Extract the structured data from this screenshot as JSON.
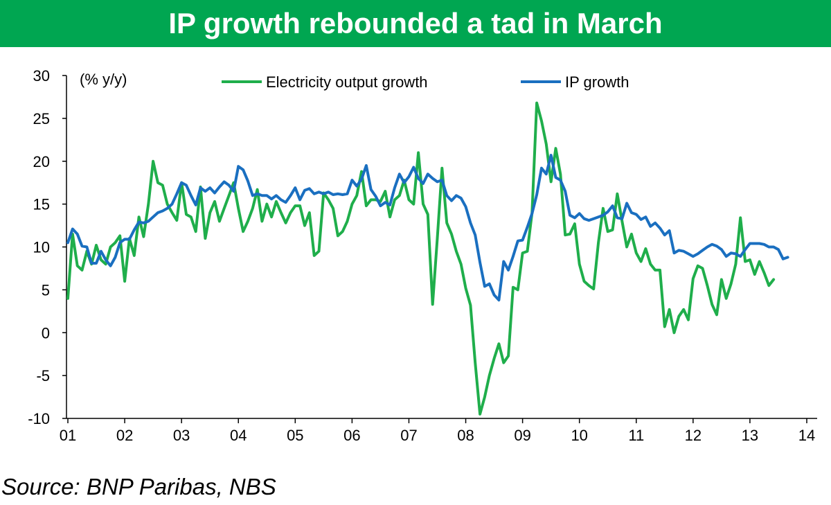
{
  "title": "IP growth rebounded a tad in March",
  "source": "Source: BNP Paribas, NBS",
  "colors": {
    "title_bg": "#00a651",
    "electricity": "#1fae4b",
    "ip": "#1a6fc0"
  },
  "chart_data": {
    "type": "line",
    "title": "IP growth rebounded a tad in March",
    "ylabel": "(% y/y)",
    "xlabel": "",
    "ylim": [
      -10,
      30
    ],
    "yticks": [
      -10,
      -5,
      0,
      5,
      10,
      15,
      20,
      25,
      30
    ],
    "xlim": [
      2001.0,
      2014.17
    ],
    "xtick_labels": [
      "01",
      "02",
      "03",
      "04",
      "05",
      "06",
      "07",
      "08",
      "09",
      "10",
      "11",
      "12",
      "13",
      "14"
    ],
    "xtick_values": [
      2001,
      2002,
      2003,
      2004,
      2005,
      2006,
      2007,
      2008,
      2009,
      2010,
      2011,
      2012,
      2013,
      2014
    ],
    "grid": false,
    "legend_position": "top",
    "x_start": "2001-01",
    "frequency": "monthly",
    "series": [
      {
        "name": "Electricity output growth",
        "color": "#1fae4b",
        "values": [
          4.0,
          11.5,
          7.8,
          7.3,
          9.5,
          8.0,
          10.2,
          8.5,
          8.0,
          10.0,
          10.5,
          11.3,
          6.0,
          11.0,
          9.0,
          13.5,
          11.2,
          15.0,
          20.0,
          17.5,
          17.2,
          15.0,
          14.0,
          13.1,
          17.5,
          13.8,
          13.5,
          11.8,
          17.0,
          11.0,
          14.0,
          15.3,
          13.0,
          14.5,
          16.0,
          17.5,
          14.5,
          11.8,
          13.0,
          14.5,
          16.7,
          13.0,
          15.0,
          13.5,
          15.3,
          14.0,
          12.8,
          14.0,
          14.8,
          14.8,
          12.5,
          14.0,
          9.0,
          9.5,
          16.3,
          15.5,
          14.5,
          11.3,
          11.8,
          13.0,
          15.0,
          16.0,
          18.8,
          14.8,
          15.5,
          15.5,
          15.3,
          16.5,
          13.5,
          15.5,
          16.0,
          17.8,
          15.5,
          15.0,
          21.0,
          15.0,
          13.8,
          3.3,
          11.0,
          19.2,
          12.8,
          11.5,
          9.5,
          8.0,
          5.2,
          3.2,
          -3.5,
          -9.5,
          -7.5,
          -5.0,
          -3.0,
          -1.3,
          -3.5,
          -2.7,
          5.3,
          5.0,
          9.3,
          9.5,
          14.0,
          26.8,
          24.7,
          22.0,
          17.6,
          21.5,
          18.5,
          11.4,
          11.5,
          12.7,
          8.0,
          6.0,
          5.5,
          5.1,
          10.5,
          14.5,
          11.8,
          12.0,
          16.2,
          13.0,
          10.0,
          11.5,
          9.3,
          8.3,
          9.8,
          8.0,
          7.3,
          7.3,
          0.7,
          2.7,
          0.0,
          1.9,
          2.7,
          1.5,
          6.3,
          7.8,
          7.5,
          5.5,
          3.3,
          2.1,
          6.2,
          4.0,
          5.7,
          8.0,
          13.4,
          8.3,
          8.5,
          6.8,
          8.3,
          7.0,
          5.5,
          6.2
        ]
      },
      {
        "name": "IP growth",
        "color": "#1a6fc0",
        "values": [
          10.5,
          12.1,
          11.5,
          10.1,
          10.0,
          8.1,
          8.1,
          9.5,
          8.5,
          7.8,
          8.8,
          10.5,
          10.9,
          10.9,
          12.0,
          12.9,
          12.8,
          13.0,
          13.5,
          14.0,
          14.2,
          14.5,
          15.0,
          16.2,
          17.5,
          17.2,
          16.0,
          14.9,
          16.9,
          16.5,
          16.9,
          16.3,
          17.0,
          17.6,
          17.2,
          16.5,
          19.4,
          19.0,
          17.7,
          16.0,
          16.2,
          16.0,
          16.0,
          15.6,
          16.0,
          15.5,
          15.2,
          16.0,
          16.9,
          15.5,
          16.6,
          16.8,
          16.2,
          16.4,
          16.2,
          16.4,
          16.1,
          16.2,
          16.1,
          16.2,
          17.8,
          17.1,
          17.9,
          19.5,
          16.7,
          15.9,
          14.8,
          15.2,
          14.9,
          16.9,
          18.5,
          17.5,
          18.2,
          19.3,
          18.0,
          17.4,
          18.5,
          18.0,
          17.6,
          17.8,
          16.0,
          15.4,
          16.0,
          15.7,
          14.7,
          12.8,
          11.4,
          8.2,
          5.4,
          5.7,
          4.4,
          3.8,
          8.3,
          7.3,
          8.9,
          10.7,
          10.8,
          12.3,
          13.9,
          16.1,
          19.2,
          18.5,
          20.7,
          18.1,
          17.8,
          16.5,
          13.7,
          13.4,
          13.9,
          13.3,
          13.1,
          13.3,
          13.5,
          13.7,
          14.1,
          14.8,
          13.4,
          13.3,
          15.1,
          14.0,
          13.8,
          13.2,
          13.5,
          12.4,
          12.8,
          12.2,
          11.4,
          11.9,
          9.3,
          9.6,
          9.5,
          9.2,
          8.9,
          9.2,
          9.6,
          10.0,
          10.3,
          10.1,
          9.7,
          8.9,
          9.3,
          9.2,
          8.9,
          9.7,
          10.4,
          10.4,
          10.4,
          10.3,
          10.0,
          10.0,
          9.7,
          8.6,
          8.8
        ]
      }
    ]
  }
}
